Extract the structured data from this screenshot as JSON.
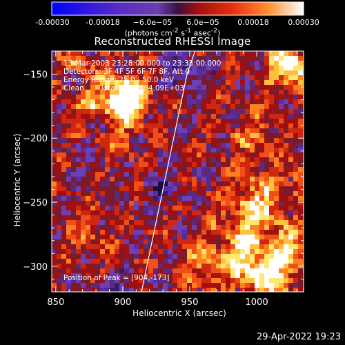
{
  "colorbar": {
    "ticks": [
      "-0.00030",
      "-0.00018",
      "−6.0e−05",
      "6.0e−05",
      "0.00018",
      "0.00030"
    ],
    "tick_values": [
      -0.0003,
      -0.00018,
      -6e-05,
      6e-05,
      0.00018,
      0.0003
    ],
    "units_html": "(photons cm<sup>-2</sup> s<sup>-1</sup> asec<sup>-2</sup>)",
    "units": "(photons cm-2 s-1 asec-2)",
    "range": [
      -0.0003,
      0.0003
    ]
  },
  "info": {
    "time": "13-Mar-2003 23:28:00.000 to 23:33:00.000",
    "detectors": "Detectors: 3F 4F 5F 6F 7F 8F, Att 0",
    "energy": "Energy Range: 25.0 - 50.0 keV",
    "method": "Clean",
    "counts": "Total counts: 4.09E+03",
    "peak": "Position of Peak = [904,-173]"
  },
  "timestamp": "29-Apr-2022 19:23",
  "colors": {
    "background": "#000000",
    "colormap": [
      "#0000ff",
      "#4020c0",
      "#6a3fb0",
      "#7a1a2a",
      "#b01010",
      "#e83010",
      "#ff8020",
      "#ffe860",
      "#ffffff"
    ]
  },
  "chart_data": {
    "type": "heatmap",
    "title": "Reconstructed RHESSI Image",
    "xlabel": "Heliocentric X (arcsec)",
    "ylabel": "Heliocentric Y (arcsec)",
    "xlim": [
      847,
      1035
    ],
    "ylim": [
      -320,
      -132
    ],
    "xticks": [
      850,
      900,
      950,
      1000
    ],
    "yticks": [
      -150,
      -200,
      -250,
      -300
    ],
    "peak": [
      904,
      -173
    ],
    "limb_curve": {
      "x": [
        914,
        918,
        924,
        930,
        936,
        942,
        948,
        954
      ],
      "y": [
        -320,
        -300,
        -270,
        -240,
        -210,
        -180,
        -150,
        -132
      ]
    }
  }
}
